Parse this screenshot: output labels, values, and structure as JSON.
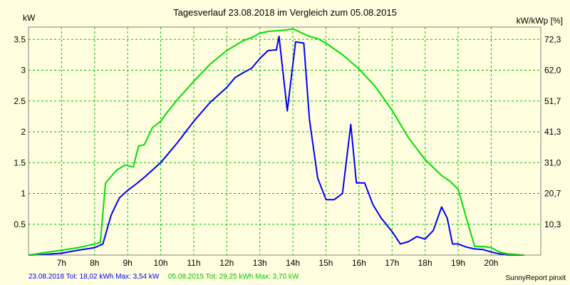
{
  "title": "Tagesverlauf 23.08.2018 im Vergleich zum 05.08.2015",
  "footer": {
    "blue": "23.08.2018 Tot: 18,02 kWh Max: 3,54 kW",
    "green": "05.08.2015 Tot: 29,25 kWh Max: 3,70 kW",
    "credit": "SunnyReport pinxit"
  },
  "colors": {
    "background": "#ffffe0",
    "grid": "#00c000",
    "series_2018": "#0000ff",
    "series_2015": "#00e000"
  },
  "chart_data": {
    "type": "line",
    "ylabel": "kW",
    "ylabel_right": "kW/kWp [%]",
    "xlim": [
      6.0,
      21.5
    ],
    "ylim": [
      0,
      3.7
    ],
    "grid": true,
    "x_ticks": [
      {
        "value": 7,
        "label": "7h"
      },
      {
        "value": 8,
        "label": "8h"
      },
      {
        "value": 9,
        "label": "9h"
      },
      {
        "value": 10,
        "label": "10h"
      },
      {
        "value": 11,
        "label": "11h"
      },
      {
        "value": 12,
        "label": "12h"
      },
      {
        "value": 13,
        "label": "13h"
      },
      {
        "value": 14,
        "label": "14h"
      },
      {
        "value": 15,
        "label": "15h"
      },
      {
        "value": 16,
        "label": "16h"
      },
      {
        "value": 17,
        "label": "17h"
      },
      {
        "value": 18,
        "label": "18h"
      },
      {
        "value": 19,
        "label": "19h"
      },
      {
        "value": 20,
        "label": "20h"
      }
    ],
    "y_ticks": [
      {
        "value": 0.5,
        "label": "0.5"
      },
      {
        "value": 1,
        "label": "1"
      },
      {
        "value": 1.5,
        "label": "1.5"
      },
      {
        "value": 2,
        "label": "2"
      },
      {
        "value": 2.5,
        "label": "2.5"
      },
      {
        "value": 3,
        "label": "3"
      },
      {
        "value": 3.5,
        "label": "3.5"
      }
    ],
    "y2_ticks": [
      {
        "value": 0.5,
        "label": "10,3"
      },
      {
        "value": 1,
        "label": "20,7"
      },
      {
        "value": 1.5,
        "label": "31,0"
      },
      {
        "value": 2,
        "label": "41,3"
      },
      {
        "value": 2.5,
        "label": "51,7"
      },
      {
        "value": 3,
        "label": "62,0"
      },
      {
        "value": 3.5,
        "label": "72,3"
      }
    ],
    "series": [
      {
        "color": "#0000ff",
        "x": [
          6.0,
          6.5,
          7.0,
          7.5,
          8.0,
          8.25,
          8.5,
          8.75,
          9.0,
          9.25,
          9.5,
          10.0,
          10.5,
          11.0,
          11.5,
          12.0,
          12.25,
          12.5,
          12.75,
          13.0,
          13.25,
          13.5,
          13.58,
          13.83,
          14.08,
          14.33,
          14.5,
          14.75,
          15.0,
          15.25,
          15.5,
          15.75,
          15.92,
          16.17,
          16.42,
          16.67,
          17.0,
          17.25,
          17.5,
          17.75,
          18.0,
          18.25,
          18.5,
          18.67,
          18.83,
          19.0,
          19.25,
          19.5,
          19.75,
          20.0,
          20.25,
          20.5,
          21.0
        ],
        "values": [
          0.0,
          0.01,
          0.03,
          0.08,
          0.12,
          0.18,
          0.65,
          0.93,
          1.05,
          1.15,
          1.26,
          1.5,
          1.82,
          2.17,
          2.48,
          2.72,
          2.88,
          2.96,
          3.03,
          3.19,
          3.32,
          3.33,
          3.55,
          2.34,
          3.46,
          3.44,
          2.2,
          1.25,
          0.9,
          0.9,
          1.0,
          2.12,
          1.17,
          1.17,
          0.82,
          0.6,
          0.38,
          0.18,
          0.22,
          0.3,
          0.26,
          0.4,
          0.78,
          0.6,
          0.18,
          0.18,
          0.13,
          0.1,
          0.09,
          0.05,
          0.02,
          0.0,
          0.0
        ]
      },
      {
        "color": "#00e000",
        "x": [
          6.0,
          6.5,
          7.0,
          7.5,
          8.0,
          8.17,
          8.33,
          8.67,
          8.92,
          9.17,
          9.33,
          9.5,
          9.75,
          10.0,
          10.17,
          10.5,
          11.0,
          11.5,
          12.0,
          12.5,
          12.75,
          13.0,
          13.25,
          13.5,
          13.75,
          14.0,
          14.25,
          14.5,
          14.75,
          15.0,
          15.5,
          16.0,
          16.5,
          17.0,
          17.5,
          18.0,
          18.5,
          18.75,
          19.0,
          19.25,
          19.5,
          19.75,
          20.0,
          20.25,
          20.5,
          20.75,
          21.0
        ],
        "values": [
          0.0,
          0.04,
          0.08,
          0.12,
          0.18,
          0.2,
          1.17,
          1.38,
          1.46,
          1.43,
          1.77,
          1.79,
          2.07,
          2.17,
          2.3,
          2.52,
          2.82,
          3.1,
          3.32,
          3.48,
          3.53,
          3.6,
          3.63,
          3.64,
          3.65,
          3.67,
          3.61,
          3.55,
          3.51,
          3.44,
          3.25,
          3.02,
          2.73,
          2.35,
          1.9,
          1.55,
          1.29,
          1.2,
          1.07,
          0.6,
          0.14,
          0.14,
          0.12,
          0.05,
          0.02,
          0.01,
          0.0
        ]
      }
    ]
  }
}
